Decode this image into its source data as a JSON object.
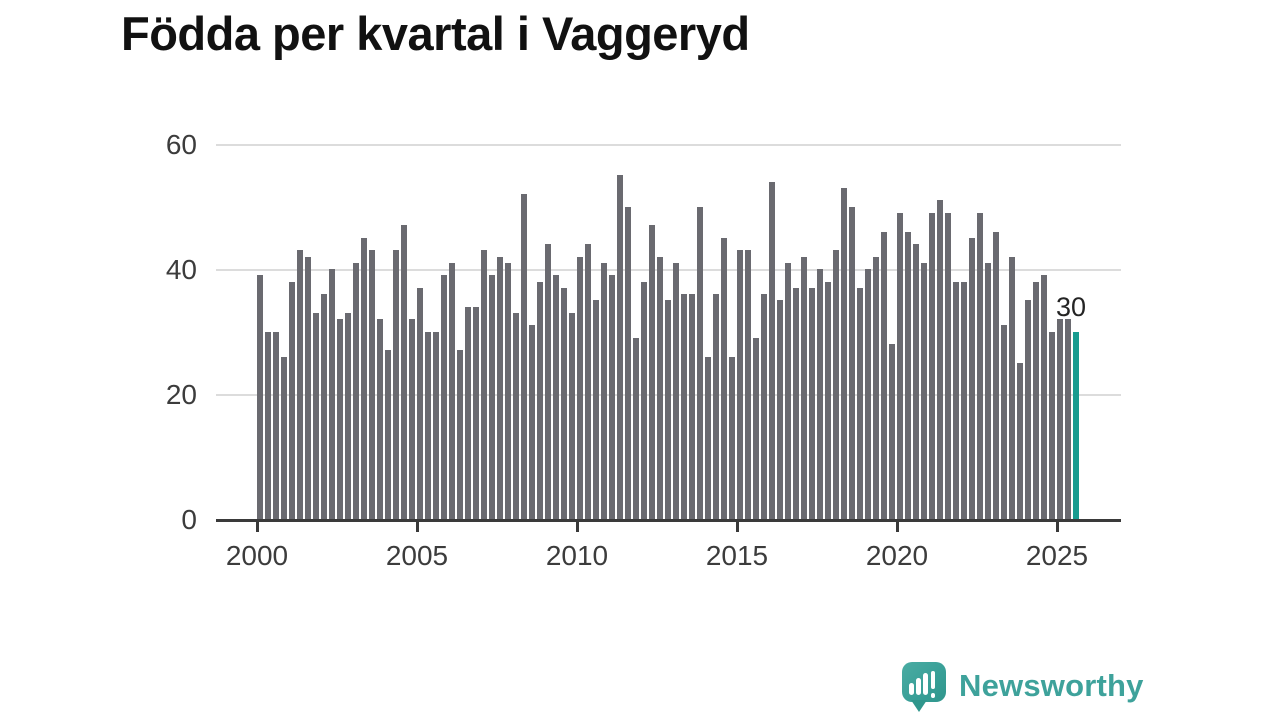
{
  "title": "Födda per kvartal i Vaggeryd",
  "chart_data": {
    "type": "bar",
    "title": "Födda per kvartal i Vaggeryd",
    "x_start": "2000 Q1",
    "x_end": "2025 Q3",
    "frequency": "quarterly",
    "x_tick_labels": [
      "2000",
      "2005",
      "2010",
      "2015",
      "2020",
      "2025"
    ],
    "y_ticks": [
      0,
      20,
      40,
      60
    ],
    "ylim": [
      0,
      60
    ],
    "grid": "horizontal",
    "bar_color": "#6a6a70",
    "series": [
      {
        "name": "Födda per kvartal",
        "values": [
          39,
          30,
          30,
          26,
          38,
          43,
          42,
          33,
          36,
          40,
          32,
          33,
          41,
          45,
          43,
          32,
          27,
          43,
          47,
          32,
          37,
          30,
          30,
          39,
          41,
          27,
          34,
          34,
          43,
          39,
          42,
          41,
          33,
          52,
          31,
          38,
          44,
          39,
          37,
          33,
          42,
          44,
          35,
          41,
          39,
          55,
          50,
          29,
          38,
          47,
          42,
          35,
          41,
          36,
          36,
          50,
          26,
          36,
          45,
          26,
          43,
          43,
          29,
          36,
          54,
          35,
          41,
          37,
          42,
          37,
          40,
          38,
          43,
          53,
          50,
          37,
          40,
          42,
          46,
          28,
          49,
          46,
          44,
          41,
          49,
          51,
          49,
          38,
          38,
          45,
          49,
          41,
          46,
          31,
          42,
          25,
          35,
          38,
          39,
          30,
          32,
          32,
          30
        ]
      }
    ],
    "highlight_last": {
      "period": "2025 Q3",
      "value": 30,
      "label": "30",
      "color": "#179b8f"
    },
    "legend": "none"
  },
  "branding": {
    "wordmark": "Newsworthy",
    "icon": "newsworthy-speech-bubble-chart-icon",
    "color": "#3ea29b"
  }
}
